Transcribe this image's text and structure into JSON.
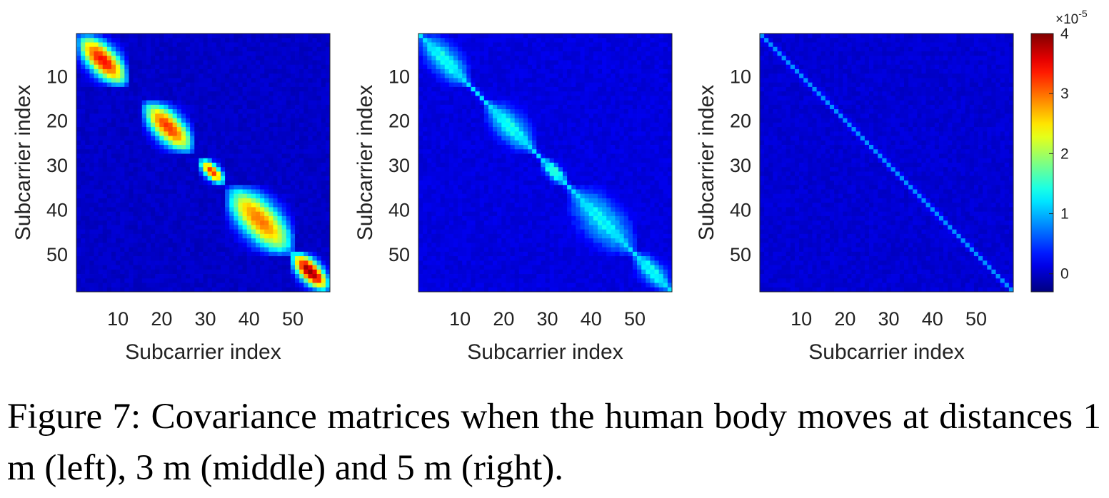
{
  "figure_caption": "Figure 7: Covariance matrices when the human body moves at distances 1 m (left), 3 m (middle) and 5 m (right).",
  "colorbar": {
    "exponent_label": "×10",
    "exponent_power": "-5",
    "ticks": [
      0,
      1,
      2,
      3,
      4
    ],
    "tick_labels": [
      "0",
      "1",
      "2",
      "3",
      "4"
    ],
    "range": [
      -0.3,
      4
    ],
    "colormap": "jet"
  },
  "chart_data": [
    {
      "type": "heatmap",
      "panel": "left",
      "matrix_size": 58,
      "xlabel": "Subcarrier index",
      "ylabel": "Subcarrier index",
      "x_ticks": [
        10,
        20,
        30,
        40,
        50
      ],
      "y_ticks": [
        10,
        20,
        30,
        40,
        50
      ],
      "x_tick_labels": [
        "10",
        "20",
        "30",
        "40",
        "50"
      ],
      "y_tick_labels": [
        "10",
        "20",
        "30",
        "40",
        "50"
      ],
      "background": 0.0,
      "blocks": [
        {
          "start": 1,
          "end": 12,
          "peak": 3.5
        },
        {
          "start": 16,
          "end": 27,
          "peak": 3.3
        },
        {
          "start": 29,
          "end": 34,
          "peak": 3.3
        },
        {
          "start": 35,
          "end": 50,
          "peak": 3.0
        },
        {
          "start": 50,
          "end": 58,
          "peak": 4.0
        }
      ]
    },
    {
      "type": "heatmap",
      "panel": "middle",
      "matrix_size": 58,
      "xlabel": "Subcarrier index",
      "ylabel": "Subcarrier index",
      "x_ticks": [
        10,
        20,
        30,
        40,
        50
      ],
      "y_ticks": [
        10,
        20,
        30,
        40,
        50
      ],
      "x_tick_labels": [
        "10",
        "20",
        "30",
        "40",
        "50"
      ],
      "y_tick_labels": [
        "10",
        "20",
        "30",
        "40",
        "50"
      ],
      "background": 0.1,
      "diagonal": 1.2,
      "blocks": [
        {
          "start": 1,
          "end": 12,
          "peak": 1.2
        },
        {
          "start": 16,
          "end": 27,
          "peak": 1.2
        },
        {
          "start": 29,
          "end": 34,
          "peak": 1.4
        },
        {
          "start": 35,
          "end": 50,
          "peak": 1.1
        },
        {
          "start": 50,
          "end": 58,
          "peak": 1.2
        }
      ]
    },
    {
      "type": "heatmap",
      "panel": "right",
      "matrix_size": 58,
      "xlabel": "Subcarrier index",
      "ylabel": "Subcarrier index",
      "x_ticks": [
        10,
        20,
        30,
        40,
        50
      ],
      "y_ticks": [
        10,
        20,
        30,
        40,
        50
      ],
      "x_tick_labels": [
        "10",
        "20",
        "30",
        "40",
        "50"
      ],
      "y_tick_labels": [
        "10",
        "20",
        "30",
        "40",
        "50"
      ],
      "background": 0.05,
      "diagonal": 0.85,
      "blocks": []
    }
  ]
}
